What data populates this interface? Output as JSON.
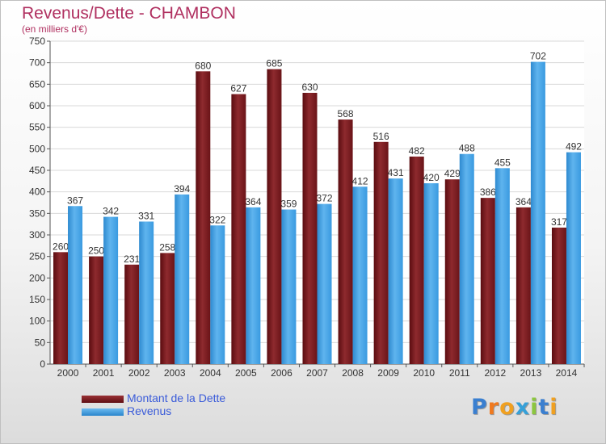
{
  "header": {
    "title": "Revenus/Dette - CHAMBON",
    "subtitle": "(en milliers d'€)"
  },
  "legend": {
    "items": [
      {
        "label": "Montant de la Dette",
        "color": "#7a1a1e"
      },
      {
        "label": "Revenus",
        "color": "#3f9fe0"
      }
    ]
  },
  "brand": {
    "letters": [
      {
        "ch": "P",
        "color": "#3a7fd0"
      },
      {
        "ch": "r",
        "color": "#f07a20"
      },
      {
        "ch": "o",
        "color": "#f0a020"
      },
      {
        "ch": "x",
        "color": "#36a0d8"
      },
      {
        "ch": "i",
        "color": "#8cc63f"
      },
      {
        "ch": "t",
        "color": "#3a7fd0"
      },
      {
        "ch": "i",
        "color": "#f0a020"
      }
    ]
  },
  "chart_data": {
    "type": "bar",
    "categories": [
      "2000",
      "2001",
      "2002",
      "2003",
      "2004",
      "2005",
      "2006",
      "2007",
      "2008",
      "2009",
      "2010",
      "2011",
      "2012",
      "2013",
      "2014"
    ],
    "series": [
      {
        "name": "Montant de la Dette",
        "color": "#7a1a1e",
        "values": [
          260,
          250,
          231,
          258,
          680,
          627,
          685,
          630,
          568,
          516,
          482,
          429,
          386,
          364,
          317
        ]
      },
      {
        "name": "Revenus",
        "color": "#3f9fe0",
        "values": [
          367,
          342,
          331,
          394,
          322,
          364,
          359,
          372,
          412,
          431,
          420,
          488,
          455,
          702,
          492
        ]
      }
    ],
    "title": "Revenus/Dette - CHAMBON",
    "subtitle": "(en milliers d'€)",
    "xlabel": "",
    "ylabel": "",
    "ylim": [
      0,
      750
    ],
    "ytick_step": 50,
    "grid": true,
    "legend_position": "bottom-left"
  }
}
